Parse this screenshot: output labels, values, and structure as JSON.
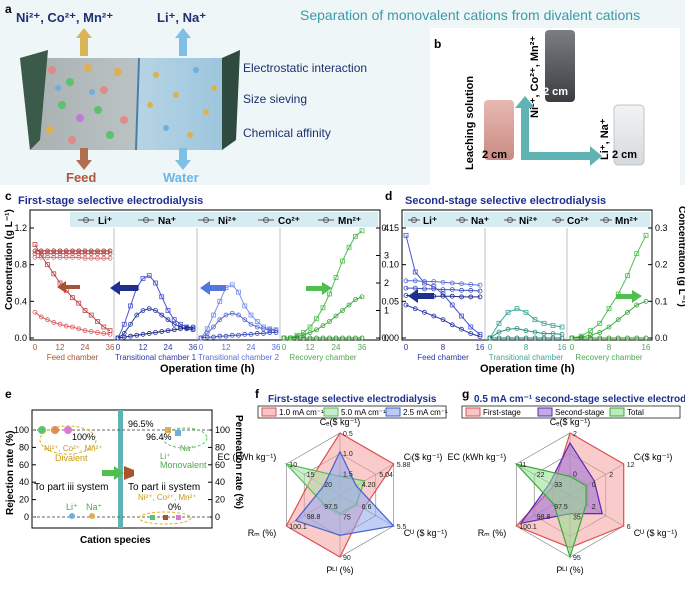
{
  "panel_a": {
    "letter": "a",
    "title": "Separation of monovalent cations from divalent cations",
    "divalent_label": "Ni²⁺, Co²⁺, Mn²⁺",
    "monovalent_label": "Li⁺, Na⁺",
    "feed": "Feed",
    "water": "Water",
    "mechanisms": [
      "Electrostatic interaction",
      "Size sieving",
      "Chemical affinity"
    ]
  },
  "panel_b": {
    "letter": "b",
    "leaching": "Leaching solution",
    "divalent": "Ni²⁺, Co²⁺, Mn²⁺",
    "monovalent": "Li⁺, Na⁺",
    "scale": "2 cm"
  },
  "panel_c": {
    "letter": "c",
    "title": "First-stage selective electrodialysis",
    "ylabel_left": "Concentration (g L⁻¹)",
    "xlabel": "Operation time (h)",
    "legend": [
      "Li⁺",
      "Na⁺",
      "Ni²⁺",
      "Co²⁺",
      "Mn²⁺"
    ],
    "chambers": [
      "Feed chamber",
      "Transitional chamber 1",
      "Transitional chamber 2",
      "Recovery chamber"
    ],
    "left_ticks": [
      "0.0",
      "0.4",
      "0.8",
      "1.2"
    ],
    "right_ticks": [
      "0",
      "1",
      "2",
      "3",
      "4"
    ],
    "x_ticks": [
      "0",
      "12",
      "24",
      "36"
    ],
    "chart_data": {
      "type": "line",
      "x": [
        0,
        3,
        6,
        9,
        12,
        15,
        18,
        21,
        24,
        27,
        30,
        33,
        36
      ],
      "feed": {
        "Li": [
          0.28,
          0.23,
          0.2,
          0.17,
          0.15,
          0.13,
          0.12,
          0.1,
          0.08,
          0.07,
          0.06,
          0.05,
          0.04
        ],
        "Na": [
          1.02,
          0.9,
          0.8,
          0.7,
          0.6,
          0.52,
          0.44,
          0.38,
          0.3,
          0.25,
          0.18,
          0.12,
          0.08
        ],
        "Ni": [
          0.95,
          0.95,
          0.95,
          0.95,
          0.95,
          0.95,
          0.95,
          0.95,
          0.95,
          0.95,
          0.95,
          0.95,
          0.95
        ],
        "Co": [
          0.92,
          0.92,
          0.92,
          0.92,
          0.92,
          0.92,
          0.92,
          0.92,
          0.92,
          0.92,
          0.92,
          0.92,
          0.92
        ],
        "Mn": [
          0.88,
          0.88,
          0.88,
          0.88,
          0.88,
          0.88,
          0.88,
          0.88,
          0.87,
          0.87,
          0.87,
          0.87,
          0.87
        ]
      },
      "transitional_1": {
        "Na": [
          0,
          0.15,
          0.35,
          0.55,
          0.65,
          0.68,
          0.6,
          0.45,
          0.3,
          0.2,
          0.15,
          0.12,
          0.1
        ],
        "Li": [
          0,
          0.05,
          0.15,
          0.25,
          0.3,
          0.32,
          0.3,
          0.25,
          0.2,
          0.15,
          0.12,
          0.1,
          0.09
        ],
        "Ni": [
          0,
          0.01,
          0.02,
          0.03,
          0.04,
          0.05,
          0.06,
          0.07,
          0.08,
          0.09,
          0.1,
          0.11,
          0.12
        ]
      },
      "transitional_2": {
        "Na": [
          0,
          0.1,
          0.25,
          0.4,
          0.55,
          0.58,
          0.5,
          0.35,
          0.25,
          0.18,
          0.12,
          0.1,
          0.09
        ],
        "Li": [
          0,
          0.05,
          0.12,
          0.2,
          0.25,
          0.27,
          0.25,
          0.2,
          0.15,
          0.12,
          0.1,
          0.09,
          0.08
        ],
        "Ni": [
          0,
          0.01,
          0.01,
          0.02,
          0.02,
          0.03,
          0.03,
          0.04,
          0.04,
          0.05,
          0.05,
          0.06,
          0.06
        ]
      },
      "recovery_right_axis": {
        "Na": [
          0,
          0,
          0.1,
          0.2,
          0.4,
          0.7,
          1.1,
          1.6,
          2.2,
          2.8,
          3.3,
          3.7,
          3.9
        ],
        "Li": [
          0,
          0,
          0.05,
          0.1,
          0.2,
          0.3,
          0.45,
          0.6,
          0.8,
          1.0,
          1.2,
          1.4,
          1.5
        ],
        "Ni": [
          0,
          0,
          0,
          0,
          0,
          0,
          0,
          0,
          0,
          0,
          0,
          0,
          0
        ]
      }
    }
  },
  "panel_d": {
    "letter": "d",
    "title": "Second-stage selective electrodialysis",
    "ylabel_right": "Concentration (g L⁻¹)",
    "xlabel": "Operation time (h)",
    "legend": [
      "Li⁺",
      "Na⁺",
      "Ni²⁺",
      "Co²⁺",
      "Mn²⁺"
    ],
    "chambers": [
      "Feed chamber",
      "Transitional chamber",
      "Recovery chamber"
    ],
    "left_ticks": [
      "0.00",
      "0.05",
      "0.10",
      "0.15"
    ],
    "right_ticks": [
      "0.0",
      "0.1",
      "0.2",
      "0.3"
    ],
    "x_ticks": [
      "0",
      "8",
      "16"
    ],
    "chart_data": {
      "type": "line",
      "x": [
        0,
        2,
        4,
        6,
        8,
        10,
        12,
        14,
        16
      ],
      "feed": {
        "Na": [
          0.14,
          0.09,
          0.075,
          0.07,
          0.06,
          0.045,
          0.03,
          0.015,
          0.005
        ],
        "Li": [
          0.045,
          0.04,
          0.035,
          0.03,
          0.025,
          0.018,
          0.012,
          0.006,
          0.002
        ],
        "Ni": [
          0.078,
          0.078,
          0.077,
          0.077,
          0.076,
          0.075,
          0.074,
          0.073,
          0.072
        ],
        "Co": [
          0.068,
          0.068,
          0.067,
          0.067,
          0.066,
          0.066,
          0.065,
          0.065,
          0.064
        ],
        "Mn": [
          0.058,
          0.058,
          0.058,
          0.057,
          0.057,
          0.057,
          0.056,
          0.056,
          0.056
        ]
      },
      "transitional": {
        "Na": [
          0,
          0.02,
          0.035,
          0.04,
          0.035,
          0.025,
          0.02,
          0.017,
          0.015
        ],
        "Li": [
          0,
          0.008,
          0.012,
          0.013,
          0.01,
          0.008,
          0.006,
          0.006,
          0.005
        ],
        "Ni": [
          0,
          0,
          0,
          0,
          0,
          0,
          0,
          0,
          0
        ]
      },
      "recovery_right_axis": {
        "Na": [
          0,
          0.005,
          0.02,
          0.04,
          0.08,
          0.12,
          0.17,
          0.23,
          0.28
        ],
        "Li": [
          0,
          0.002,
          0.008,
          0.015,
          0.03,
          0.05,
          0.07,
          0.09,
          0.1
        ],
        "Ni": [
          0,
          0,
          0,
          0,
          0,
          0,
          0,
          0,
          0
        ]
      }
    }
  },
  "panel_e": {
    "letter": "e",
    "ylabel_left": "Rejection rate (%)",
    "ylabel_right": "Permeation rate (%)",
    "xlabel": "Cation species",
    "left_ticks": [
      "0",
      "20",
      "40",
      "60",
      "80",
      "100"
    ],
    "right_ticks": [
      "0",
      "20",
      "40",
      "60",
      "80",
      "100"
    ],
    "part_iii": "To part iii system",
    "part_ii": "To part ii system",
    "labels": {
      "div_pct": "100%",
      "div_ions": "Ni²⁺, Co²⁺, Mn²⁺",
      "div_word": "Divalent",
      "li_pct": "96.5%",
      "na_pct": "96.4%",
      "mono_ions": "Li⁺",
      "mono_na": "Na⁺",
      "mono_word": "Monovalent",
      "low_li": "Li⁺",
      "low_na": "Na⁺",
      "low_div_ions": "Ni²⁺, Co²⁺, Mn²⁺",
      "low_div_pct": "0%"
    },
    "chart_data": {
      "type": "scatter",
      "rejection": {
        "Ni": 100,
        "Co": 100,
        "Mn": 100,
        "Li": 3.5,
        "Na": 3.6
      },
      "permeation": {
        "Li": 96.5,
        "Na": 96.4,
        "Ni": 0,
        "Co": 0,
        "Mn": 0
      }
    }
  },
  "panel_f": {
    "letter": "f",
    "title": "First-stage selective electrodialysis",
    "legend": [
      "1.0 mA cm⁻¹",
      "5.0 mA cm⁻¹",
      "2.5 mA cm⁻¹"
    ],
    "axes": [
      "Cₑ($ kg⁻¹)",
      "Cₗ($ kg⁻¹)",
      "Cᵁ ($ kg⁻¹)",
      "Pᴸᴵ (%)",
      "Rₘ (%)",
      "EC (kWh kg⁻¹)"
    ],
    "tick_labels": {
      "ce": [
        "1.5",
        "1.0",
        "0.5"
      ],
      "cl": [
        "4.20",
        "5.04",
        "5.88"
      ],
      "cu": [
        "6.6",
        "5.5"
      ],
      "pli": [
        "75",
        "90"
      ],
      "rm": [
        "97.5",
        "98.8",
        "100.1"
      ],
      "ec": [
        "20",
        "15",
        "10"
      ]
    },
    "chart_data": {
      "type": "radar",
      "series": [
        {
          "name": "1.0 mA cm⁻¹",
          "values": [
            1.3,
            5.3,
            6.0,
            88,
            100.0,
            13
          ]
        },
        {
          "name": "5.0 mA cm⁻¹",
          "values": [
            0.6,
            4.6,
            5.9,
            80,
            98.0,
            19
          ]
        },
        {
          "name": "2.5 mA cm⁻¹",
          "values": [
            1.0,
            4.4,
            6.4,
            84,
            99.5,
            10
          ]
        }
      ]
    }
  },
  "panel_g": {
    "letter": "g",
    "title": "0.5 mA cm⁻¹ second-stage selective electrodialysis",
    "legend": [
      "First-stage",
      "Second-stage",
      "Total"
    ],
    "axes": [
      "Cₑ($ kg⁻¹)",
      "Cₗ($ kg⁻¹)",
      "Cᵁ ($ kg⁻¹)",
      "Pᴸᴵ (%)",
      "Rₘ (%)",
      "EC (kWh kg⁻¹)"
    ],
    "tick_labels": {
      "ce": [
        "0",
        "2"
      ],
      "cl": [
        "0",
        "2",
        "12"
      ],
      "cu": [
        "2",
        "6"
      ],
      "pli": [
        "35",
        "95"
      ],
      "rm": [
        "97.5",
        "98.8",
        "100.1"
      ],
      "ec": [
        "33",
        "22",
        "11"
      ]
    },
    "chart_data": {
      "type": "radar",
      "series": [
        {
          "name": "First-stage",
          "values": [
            1.8,
            4,
            5,
            88,
            100.0,
            12
          ]
        },
        {
          "name": "Second-stage",
          "values": [
            1.5,
            1.5,
            3,
            70,
            99.9,
            14
          ]
        },
        {
          "name": "Total",
          "values": [
            0.5,
            0.8,
            1.5,
            93,
            99.2,
            30
          ]
        }
      ]
    }
  }
}
